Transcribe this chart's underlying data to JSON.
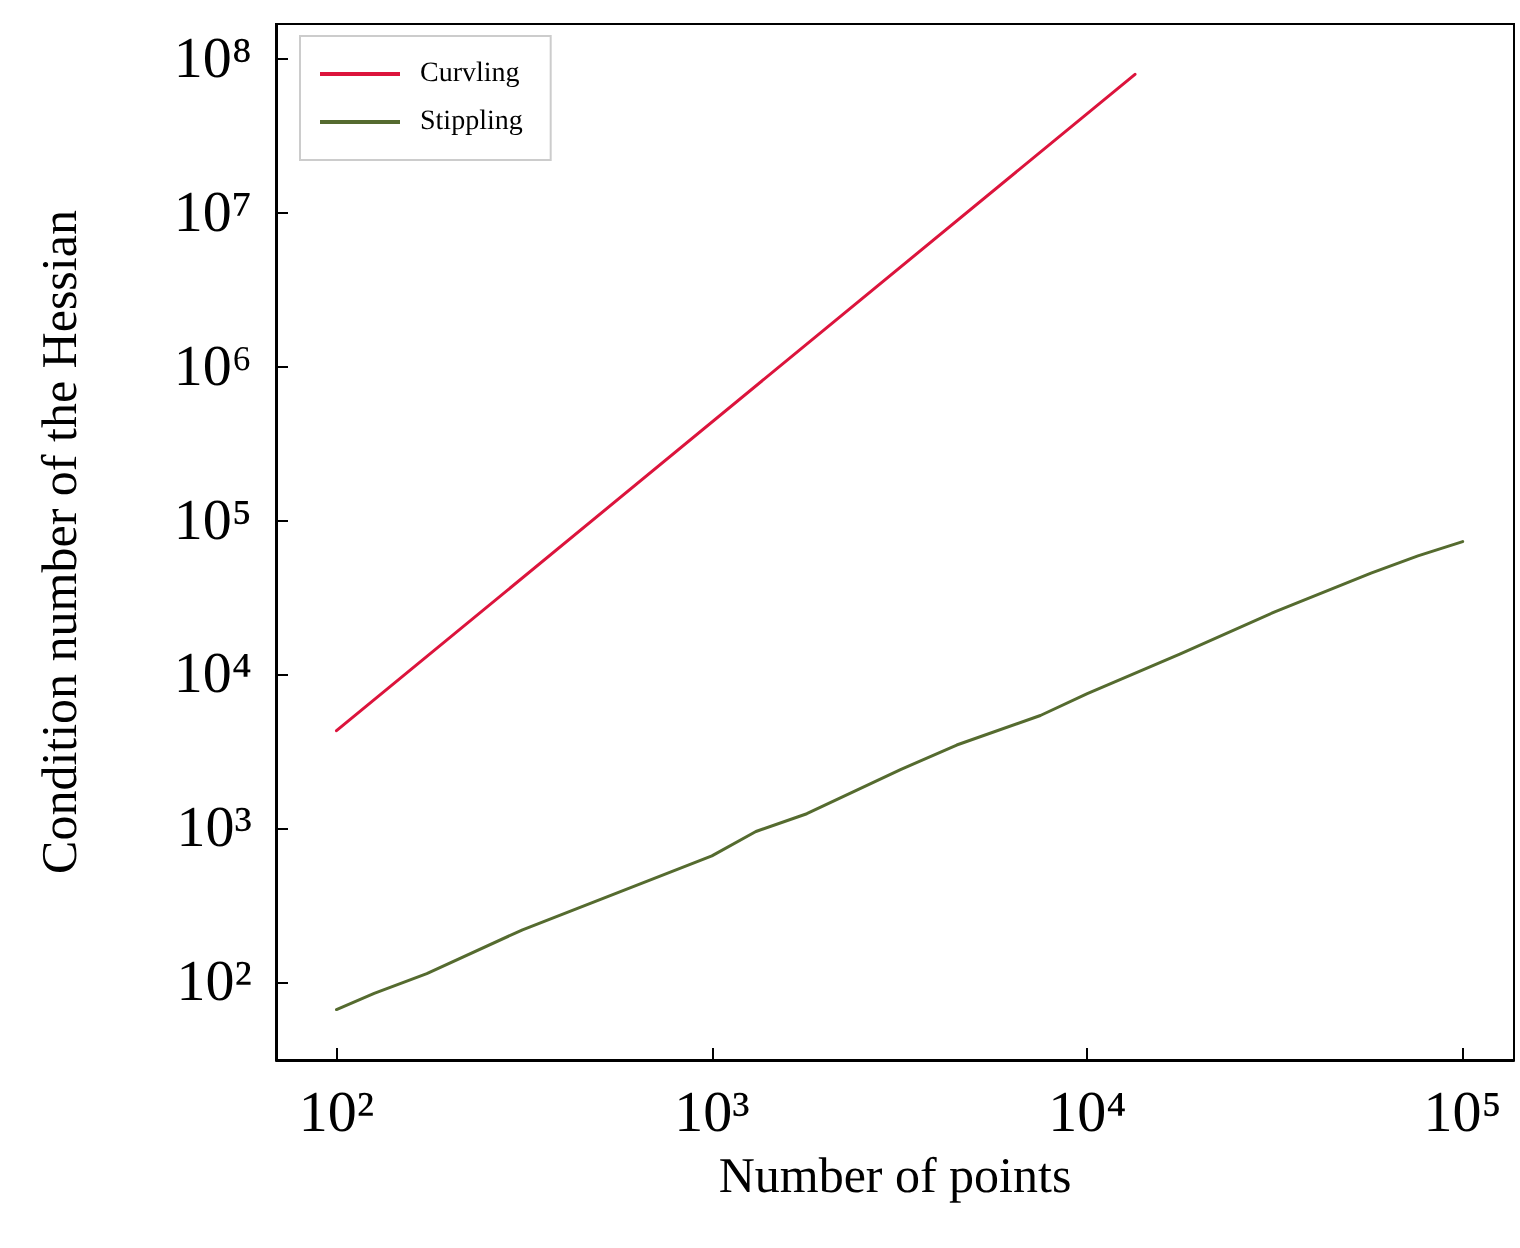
{
  "chart_data": {
    "type": "line",
    "xlabel": "Number of points",
    "ylabel": "Condition number of the Hessian",
    "log": "xy",
    "grid": false,
    "legend": "top left",
    "marker": "none",
    "line_style": "solid",
    "xlim": [
      69,
      137000
    ],
    "ylim": [
      31,
      170000000
    ],
    "xticks": [
      {
        "value": 100,
        "label": "10²"
      },
      {
        "value": 1000,
        "label": "10³"
      },
      {
        "value": 10000,
        "label": "10⁴"
      },
      {
        "value": 100000,
        "label": "10⁵"
      }
    ],
    "yticks": [
      {
        "value": 100,
        "label": "10²"
      },
      {
        "value": 1000,
        "label": "10³"
      },
      {
        "value": 10000,
        "label": "10⁴"
      },
      {
        "value": 100000,
        "label": "10⁵"
      },
      {
        "value": 1000000,
        "label": "10⁶"
      },
      {
        "value": 10000000,
        "label": "10⁷"
      },
      {
        "value": 100000000,
        "label": "10⁸"
      }
    ],
    "series": [
      {
        "name": "Curvling",
        "color": "#dc143c",
        "x": [
          100,
          13400
        ],
        "values": [
          4300,
          80000000
        ]
      },
      {
        "name": "Stippling",
        "color": "#556b2f",
        "x": [
          100,
          126,
          174,
          313,
          1000,
          1310,
          1790,
          3180,
          4490,
          7500,
          10000,
          17700,
          31700,
          57000,
          76000,
          100000
        ],
        "values": [
          66,
          84,
          113,
          218,
          660,
          950,
          1240,
          2400,
          3470,
          5400,
          7500,
          13600,
          25600,
          45500,
          59000,
          73000
        ]
      }
    ]
  }
}
